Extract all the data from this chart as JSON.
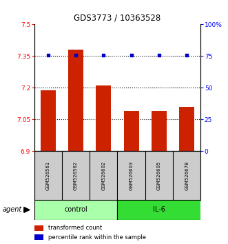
{
  "title": "GDS3773 / 10363528",
  "samples": [
    "GSM526561",
    "GSM526562",
    "GSM526602",
    "GSM526603",
    "GSM526605",
    "GSM526678"
  ],
  "bar_values": [
    7.19,
    7.38,
    7.21,
    7.09,
    7.09,
    7.11
  ],
  "percentile_values": [
    76,
    76,
    76,
    76,
    76,
    76
  ],
  "bar_color": "#cc2200",
  "percentile_color": "#0000cc",
  "ylim_left": [
    6.9,
    7.5
  ],
  "ylim_right": [
    0,
    100
  ],
  "yticks_left": [
    6.9,
    7.05,
    7.2,
    7.35,
    7.5
  ],
  "yticks_right": [
    0,
    25,
    50,
    75,
    100
  ],
  "ytick_labels_left": [
    "6.9",
    "7.05",
    "7.2",
    "7.35",
    "7.5"
  ],
  "ytick_labels_right": [
    "0",
    "25",
    "50",
    "75",
    "100%"
  ],
  "hlines": [
    7.05,
    7.2,
    7.35
  ],
  "groups": [
    {
      "label": "control",
      "indices": [
        0,
        1,
        2
      ],
      "color": "#aaffaa"
    },
    {
      "label": "IL-6",
      "indices": [
        3,
        4,
        5
      ],
      "color": "#33dd33"
    }
  ],
  "agent_label": "agent",
  "legend_bar_label": "transformed count",
  "legend_pct_label": "percentile rank within the sample",
  "bar_width": 0.55,
  "sample_panel_color": "#cccccc",
  "figsize": [
    3.31,
    3.54
  ],
  "dpi": 100
}
